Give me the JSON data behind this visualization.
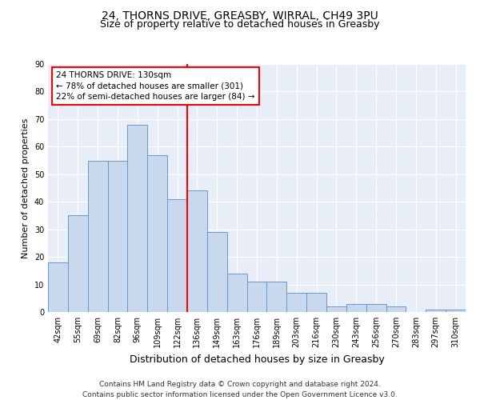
{
  "title1": "24, THORNS DRIVE, GREASBY, WIRRAL, CH49 3PU",
  "title2": "Size of property relative to detached houses in Greasby",
  "xlabel": "Distribution of detached houses by size in Greasby",
  "ylabel": "Number of detached properties",
  "categories": [
    "42sqm",
    "55sqm",
    "69sqm",
    "82sqm",
    "96sqm",
    "109sqm",
    "122sqm",
    "136sqm",
    "149sqm",
    "163sqm",
    "176sqm",
    "189sqm",
    "203sqm",
    "216sqm",
    "230sqm",
    "243sqm",
    "256sqm",
    "270sqm",
    "283sqm",
    "297sqm",
    "310sqm"
  ],
  "values": [
    18,
    35,
    55,
    55,
    68,
    57,
    41,
    44,
    29,
    14,
    11,
    11,
    7,
    7,
    2,
    3,
    3,
    2,
    0,
    1,
    1
  ],
  "bar_color": "#c9d9ed",
  "bar_edge_color": "#6699cc",
  "vline_color": "red",
  "annotation_line1": "24 THORNS DRIVE: 130sqm",
  "annotation_line2": "← 78% of detached houses are smaller (301)",
  "annotation_line3": "22% of semi-detached houses are larger (84) →",
  "annotation_box_color": "white",
  "annotation_box_edge": "red",
  "ylim": [
    0,
    90
  ],
  "yticks": [
    0,
    10,
    20,
    30,
    40,
    50,
    60,
    70,
    80,
    90
  ],
  "bg_color": "#e8eef7",
  "footer": "Contains HM Land Registry data © Crown copyright and database right 2024.\nContains public sector information licensed under the Open Government Licence v3.0.",
  "title1_fontsize": 10,
  "title2_fontsize": 9,
  "xlabel_fontsize": 9,
  "ylabel_fontsize": 8,
  "tick_fontsize": 7,
  "footer_fontsize": 6.5,
  "annot_fontsize": 7.5
}
